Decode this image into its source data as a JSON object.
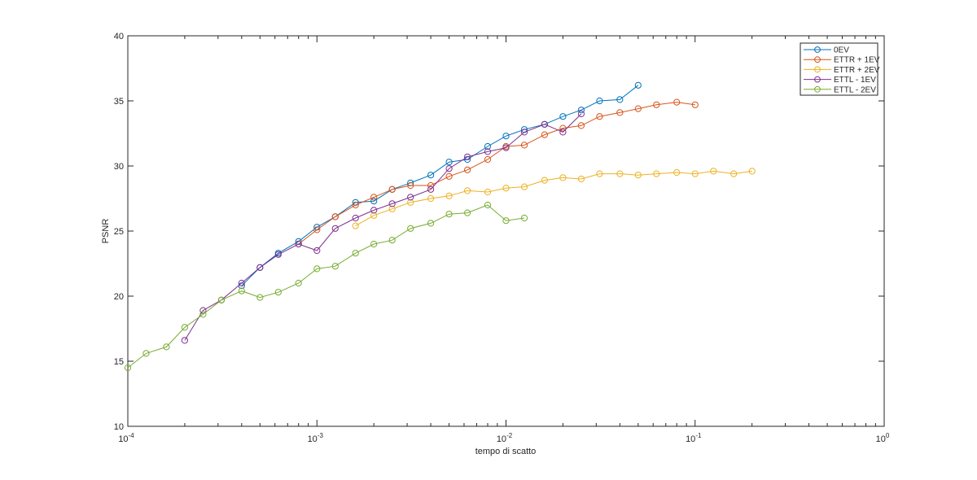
{
  "chart_data": {
    "type": "line",
    "xlabel": "tempo di scatto",
    "ylabel": "PSNR",
    "xscale": "log",
    "xlim": [
      0.0001,
      1
    ],
    "ylim": [
      10,
      40
    ],
    "yticks": [
      10,
      15,
      20,
      25,
      30,
      35,
      40
    ],
    "xtick_labels": [
      {
        "base": "10",
        "exp": "-4",
        "value": 0.0001
      },
      {
        "base": "10",
        "exp": "-3",
        "value": 0.001
      },
      {
        "base": "10",
        "exp": "-2",
        "value": 0.01
      },
      {
        "base": "10",
        "exp": "-1",
        "value": 0.1
      },
      {
        "base": "10",
        "exp": "0",
        "value": 1
      }
    ],
    "legend_position": "top-right",
    "grid": false,
    "marker": "circle",
    "series": [
      {
        "name": "0EV",
        "color": "#0072BD",
        "points": [
          [
            0.0004,
            20.8
          ],
          [
            0.0005,
            22.2
          ],
          [
            0.000625,
            23.3
          ],
          [
            0.0008,
            24.2
          ],
          [
            0.001,
            25.3
          ],
          [
            0.00125,
            26.1
          ],
          [
            0.0016,
            27.2
          ],
          [
            0.002,
            27.3
          ],
          [
            0.0025,
            28.2
          ],
          [
            0.003125,
            28.7
          ],
          [
            0.004,
            29.3
          ],
          [
            0.005,
            30.3
          ],
          [
            0.00625,
            30.5
          ],
          [
            0.008,
            31.5
          ],
          [
            0.01,
            32.3
          ],
          [
            0.0125,
            32.8
          ],
          [
            0.016,
            33.2
          ],
          [
            0.02,
            33.8
          ],
          [
            0.025,
            34.3
          ],
          [
            0.03125,
            35.0
          ],
          [
            0.04,
            35.1
          ],
          [
            0.05,
            36.2
          ]
        ]
      },
      {
        "name": "ETTR + 1EV",
        "color": "#D95319",
        "points": [
          [
            0.0008,
            24.0
          ],
          [
            0.001,
            25.1
          ],
          [
            0.00125,
            26.1
          ],
          [
            0.0016,
            27.0
          ],
          [
            0.002,
            27.6
          ],
          [
            0.0025,
            28.2
          ],
          [
            0.003125,
            28.5
          ],
          [
            0.004,
            28.5
          ],
          [
            0.005,
            29.2
          ],
          [
            0.00625,
            29.7
          ],
          [
            0.008,
            30.5
          ],
          [
            0.01,
            31.5
          ],
          [
            0.0125,
            31.6
          ],
          [
            0.016,
            32.4
          ],
          [
            0.02,
            32.9
          ],
          [
            0.025,
            33.1
          ],
          [
            0.03125,
            33.8
          ],
          [
            0.04,
            34.1
          ],
          [
            0.05,
            34.4
          ],
          [
            0.0625,
            34.7
          ],
          [
            0.08,
            34.9
          ],
          [
            0.1,
            34.7
          ]
        ]
      },
      {
        "name": "ETTR + 2EV",
        "color": "#EDB120",
        "points": [
          [
            0.0016,
            25.4
          ],
          [
            0.002,
            26.2
          ],
          [
            0.0025,
            26.7
          ],
          [
            0.003125,
            27.2
          ],
          [
            0.004,
            27.5
          ],
          [
            0.005,
            27.7
          ],
          [
            0.00625,
            28.1
          ],
          [
            0.008,
            28.0
          ],
          [
            0.01,
            28.3
          ],
          [
            0.0125,
            28.4
          ],
          [
            0.016,
            28.9
          ],
          [
            0.02,
            29.1
          ],
          [
            0.025,
            29.0
          ],
          [
            0.03125,
            29.4
          ],
          [
            0.04,
            29.4
          ],
          [
            0.05,
            29.3
          ],
          [
            0.0625,
            29.4
          ],
          [
            0.08,
            29.5
          ],
          [
            0.1,
            29.4
          ],
          [
            0.125,
            29.6
          ],
          [
            0.16,
            29.4
          ],
          [
            0.2,
            29.6
          ]
        ]
      },
      {
        "name": "ETTL - 1EV",
        "color": "#7E2F8E",
        "points": [
          [
            0.0002,
            16.6
          ],
          [
            0.00025,
            18.9
          ],
          [
            0.0003125,
            19.7
          ],
          [
            0.0004,
            21.0
          ],
          [
            0.0005,
            22.2
          ],
          [
            0.000625,
            23.2
          ],
          [
            0.0008,
            24.0
          ],
          [
            0.001,
            23.5
          ],
          [
            0.00125,
            25.2
          ],
          [
            0.0016,
            26.0
          ],
          [
            0.002,
            26.6
          ],
          [
            0.0025,
            27.1
          ],
          [
            0.003125,
            27.6
          ],
          [
            0.004,
            28.2
          ],
          [
            0.005,
            29.8
          ],
          [
            0.00625,
            30.7
          ],
          [
            0.008,
            31.1
          ],
          [
            0.01,
            31.4
          ],
          [
            0.0125,
            32.6
          ],
          [
            0.016,
            33.2
          ],
          [
            0.02,
            32.6
          ],
          [
            0.025,
            34.0
          ]
        ]
      },
      {
        "name": "ETTL - 2EV",
        "color": "#77AC30",
        "points": [
          [
            0.0001,
            14.5
          ],
          [
            0.000125,
            15.6
          ],
          [
            0.00016,
            16.1
          ],
          [
            0.0002,
            17.6
          ],
          [
            0.00025,
            18.6
          ],
          [
            0.0003125,
            19.7
          ],
          [
            0.0004,
            20.4
          ],
          [
            0.0005,
            19.9
          ],
          [
            0.000625,
            20.3
          ],
          [
            0.0008,
            21.0
          ],
          [
            0.001,
            22.1
          ],
          [
            0.00125,
            22.3
          ],
          [
            0.0016,
            23.3
          ],
          [
            0.002,
            24.0
          ],
          [
            0.0025,
            24.3
          ],
          [
            0.003125,
            25.2
          ],
          [
            0.004,
            25.6
          ],
          [
            0.005,
            26.3
          ],
          [
            0.00625,
            26.4
          ],
          [
            0.008,
            27.0
          ],
          [
            0.01,
            25.8
          ],
          [
            0.0125,
            26.0
          ]
        ]
      }
    ]
  }
}
